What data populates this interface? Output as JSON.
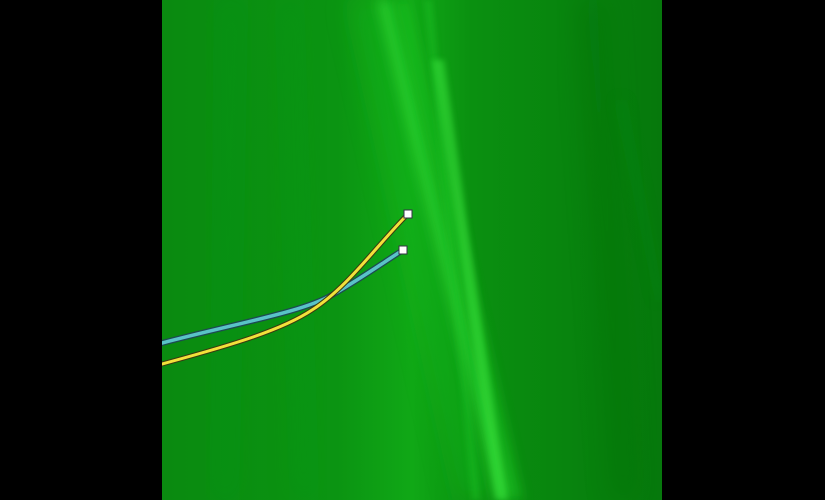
{
  "image_view": {
    "background_color": "#000000",
    "scene_colors": {
      "base": "#0a8a12",
      "highlight": "#28e02a",
      "deep": "#077a0d"
    },
    "paths": [
      {
        "name": "yellow-guide-path",
        "color": "#f2e13a",
        "outline": "#3a3a10",
        "handle_color": "#ffffff"
      },
      {
        "name": "teal-guide-path",
        "color": "#59c3c8",
        "outline": "#1d4a52",
        "handle_color": "#ffffff"
      }
    ]
  }
}
